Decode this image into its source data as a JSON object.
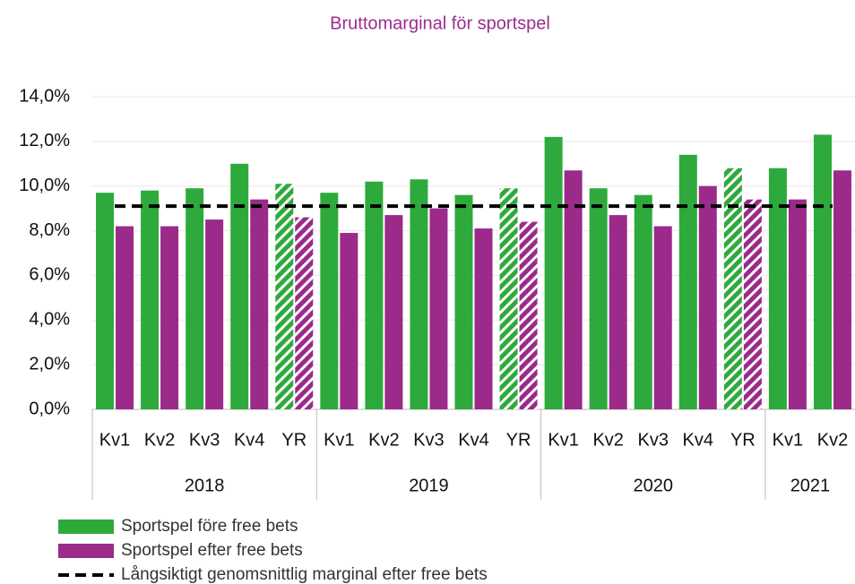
{
  "chart_data": {
    "type": "bar",
    "title": "Bruttomarginal för sportspel",
    "groups": [
      {
        "label": "2018",
        "categories": [
          "Kv1",
          "Kv2",
          "Kv3",
          "Kv4",
          "YR"
        ]
      },
      {
        "label": "2019",
        "categories": [
          "Kv1",
          "Kv2",
          "Kv3",
          "Kv4",
          "YR"
        ]
      },
      {
        "label": "2020",
        "categories": [
          "Kv1",
          "Kv2",
          "Kv3",
          "Kv4",
          "YR"
        ]
      },
      {
        "label": "2021",
        "categories": [
          "Kv1",
          "Kv2"
        ]
      }
    ],
    "hatched": [
      false,
      false,
      false,
      false,
      true,
      false,
      false,
      false,
      false,
      true,
      false,
      false,
      false,
      false,
      true,
      false,
      false
    ],
    "series": [
      {
        "name": "Sportspel före free bets",
        "type": "bar",
        "color": "#2eaa3c",
        "values": [
          9.7,
          9.8,
          9.9,
          11.0,
          10.1,
          9.7,
          10.2,
          10.3,
          9.6,
          9.9,
          12.2,
          9.9,
          9.6,
          11.4,
          10.8,
          10.8,
          12.3
        ]
      },
      {
        "name": "Sportspel efter free bets",
        "type": "bar",
        "color": "#9b2a8a",
        "values": [
          8.2,
          8.2,
          8.5,
          9.4,
          8.6,
          7.9,
          8.7,
          9.0,
          8.1,
          8.4,
          10.7,
          8.7,
          8.2,
          10.0,
          9.4,
          9.4,
          10.7
        ]
      },
      {
        "name": "Långsiktigt genomsnittlig marginal efter free bets",
        "type": "line",
        "color": "#000000",
        "values": [
          9.1,
          9.1,
          9.1,
          9.1,
          9.1,
          9.1,
          9.1,
          9.1,
          9.1,
          9.1,
          9.1,
          9.1,
          9.1,
          9.1,
          9.1,
          9.1,
          9.1
        ]
      }
    ],
    "ylim": [
      0,
      14
    ],
    "yticks": [
      {
        "value": 0,
        "label": "0,0%"
      },
      {
        "value": 2,
        "label": "2,0%"
      },
      {
        "value": 4,
        "label": "4,0%"
      },
      {
        "value": 6,
        "label": "6,0%"
      },
      {
        "value": 8,
        "label": "8,0%"
      },
      {
        "value": 10,
        "label": "10,0%"
      },
      {
        "value": 12,
        "label": "12,0%"
      },
      {
        "value": 14,
        "label": "14,0%"
      }
    ],
    "grid": true,
    "legend": "bottom-left",
    "title_color": "#9b2d8e"
  }
}
